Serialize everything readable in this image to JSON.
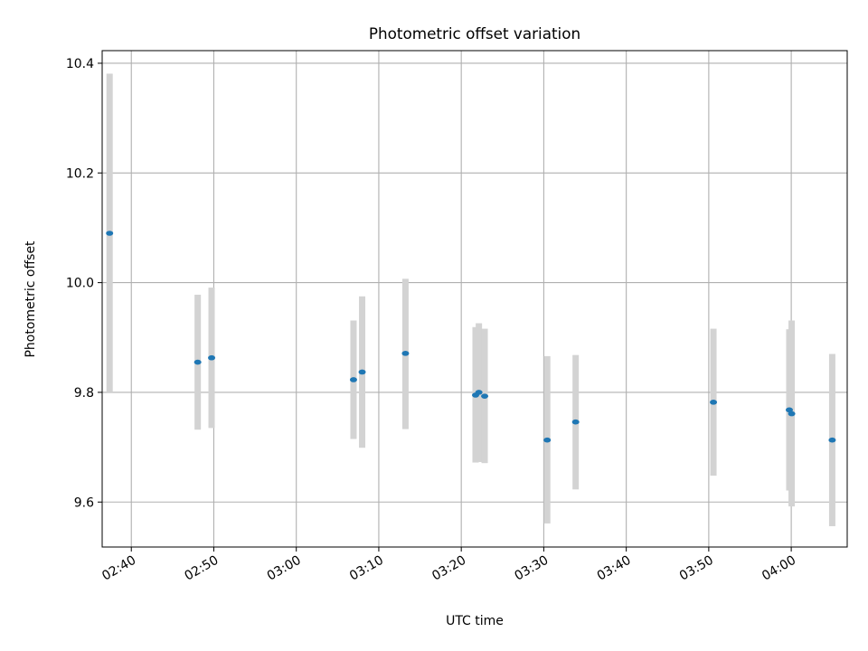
{
  "chart_data": {
    "type": "scatter",
    "title": "Photometric offset variation",
    "xlabel": "UTC time",
    "ylabel": "Photometric offset",
    "x_tick_labels": [
      "02:40",
      "02:50",
      "03:00",
      "03:10",
      "03:20",
      "03:30",
      "03:40",
      "03:50",
      "04:00"
    ],
    "y_tick_labels": [
      "9.6",
      "9.8",
      "10.0",
      "10.2",
      "10.4"
    ],
    "y_ticks": [
      9.6,
      9.8,
      10.0,
      10.2,
      10.4
    ],
    "xlim": [
      "02:36:28",
      "04:06:47"
    ],
    "ylim": [
      9.518,
      10.423
    ],
    "grid": true,
    "legend": "none",
    "colors": {
      "marker": "#1f77b4",
      "errorbar": "#d3d3d3",
      "grid": "#b0b0b0"
    },
    "points": [
      {
        "x": "02:37:22",
        "y": 10.09,
        "err_low": 9.8,
        "err_high": 10.381
      },
      {
        "x": "02:48:03",
        "y": 9.855,
        "err_low": 9.732,
        "err_high": 9.978
      },
      {
        "x": "02:49:44",
        "y": 9.863,
        "err_low": 9.735,
        "err_high": 9.991
      },
      {
        "x": "03:06:56",
        "y": 9.823,
        "err_low": 9.715,
        "err_high": 9.931
      },
      {
        "x": "03:07:59",
        "y": 9.837,
        "err_low": 9.699,
        "err_high": 9.975
      },
      {
        "x": "03:13:14",
        "y": 9.871,
        "err_low": 9.733,
        "err_high": 10.007
      },
      {
        "x": "03:21:44",
        "y": 9.795,
        "err_low": 9.672,
        "err_high": 9.919
      },
      {
        "x": "03:22:08",
        "y": 9.8,
        "err_low": 9.673,
        "err_high": 9.926
      },
      {
        "x": "03:22:50",
        "y": 9.793,
        "err_low": 9.671,
        "err_high": 9.916
      },
      {
        "x": "03:30:25",
        "y": 9.713,
        "err_low": 9.561,
        "err_high": 9.866
      },
      {
        "x": "03:33:52",
        "y": 9.746,
        "err_low": 9.623,
        "err_high": 9.868
      },
      {
        "x": "03:50:34",
        "y": 9.782,
        "err_low": 9.648,
        "err_high": 9.916
      },
      {
        "x": "03:59:46",
        "y": 9.768,
        "err_low": 9.621,
        "err_high": 9.915
      },
      {
        "x": "04:00:03",
        "y": 9.761,
        "err_low": 9.592,
        "err_high": 9.931
      },
      {
        "x": "04:04:58",
        "y": 9.713,
        "err_low": 9.556,
        "err_high": 9.87
      }
    ]
  }
}
